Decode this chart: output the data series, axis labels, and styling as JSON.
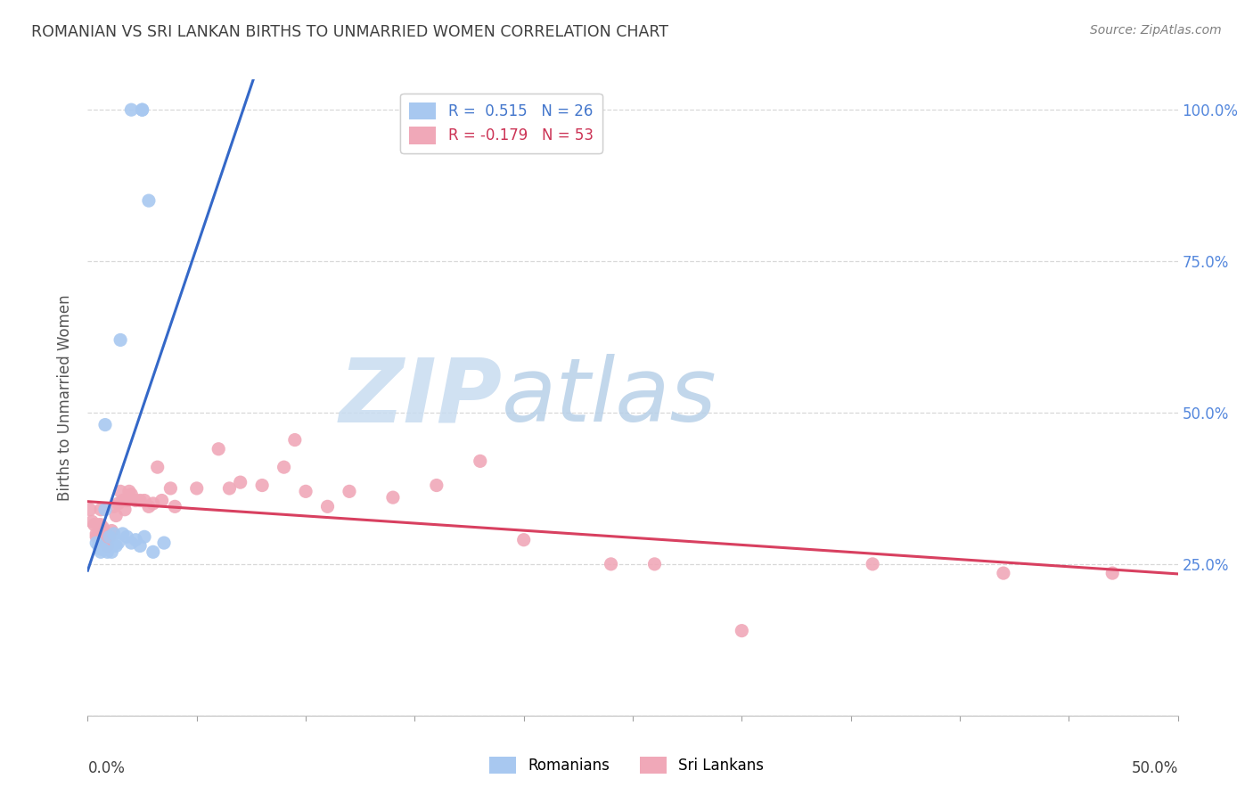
{
  "title": "ROMANIAN VS SRI LANKAN BIRTHS TO UNMARRIED WOMEN CORRELATION CHART",
  "source": "Source: ZipAtlas.com",
  "ylabel": "Births to Unmarried Women",
  "ylabel_right_ticks": [
    "100.0%",
    "75.0%",
    "50.0%",
    "25.0%"
  ],
  "ylabel_right_values": [
    1.0,
    0.75,
    0.5,
    0.25
  ],
  "legend_romanian": "R =  0.515   N = 26",
  "legend_sri_lankan": "R = -0.179   N = 53",
  "legend_label_rom": "Romanians",
  "legend_label_sri": "Sri Lankans",
  "color_romanian": "#a8c8f0",
  "color_sri_lankan": "#f0a8b8",
  "color_line_romanian": "#3468c8",
  "color_line_sri_lankan": "#d84060",
  "watermark_zip": "ZIP",
  "watermark_atlas": "atlas",
  "watermark_color_zip": "#c8dff0",
  "watermark_color_atlas": "#c0d8e8",
  "background_color": "#ffffff",
  "grid_color": "#d8d8d8",
  "title_color": "#404040",
  "romanians_x": [
    0.02,
    0.025,
    0.025,
    0.028,
    0.015,
    0.008,
    0.008,
    0.01,
    0.012,
    0.014,
    0.016,
    0.018,
    0.02,
    0.022,
    0.024,
    0.026,
    0.006,
    0.004,
    0.005,
    0.006,
    0.007,
    0.009,
    0.011,
    0.013,
    0.03,
    0.035
  ],
  "romanians_y": [
    1.0,
    1.0,
    1.0,
    0.85,
    0.62,
    0.48,
    0.34,
    0.295,
    0.3,
    0.285,
    0.3,
    0.295,
    0.285,
    0.29,
    0.28,
    0.295,
    0.27,
    0.285,
    0.28,
    0.275,
    0.275,
    0.27,
    0.27,
    0.28,
    0.27,
    0.285
  ],
  "srilankans_x": [
    0.001,
    0.002,
    0.003,
    0.004,
    0.004,
    0.005,
    0.006,
    0.006,
    0.007,
    0.007,
    0.008,
    0.008,
    0.009,
    0.01,
    0.011,
    0.012,
    0.013,
    0.014,
    0.015,
    0.016,
    0.017,
    0.018,
    0.019,
    0.02,
    0.022,
    0.024,
    0.026,
    0.028,
    0.03,
    0.032,
    0.034,
    0.038,
    0.04,
    0.05,
    0.06,
    0.065,
    0.07,
    0.08,
    0.09,
    0.095,
    0.1,
    0.11,
    0.12,
    0.14,
    0.16,
    0.18,
    0.2,
    0.24,
    0.26,
    0.3,
    0.36,
    0.42,
    0.47
  ],
  "srilankans_y": [
    0.34,
    0.32,
    0.315,
    0.3,
    0.295,
    0.315,
    0.34,
    0.315,
    0.31,
    0.295,
    0.3,
    0.285,
    0.28,
    0.295,
    0.305,
    0.345,
    0.33,
    0.35,
    0.37,
    0.355,
    0.34,
    0.355,
    0.37,
    0.365,
    0.355,
    0.355,
    0.355,
    0.345,
    0.35,
    0.41,
    0.355,
    0.375,
    0.345,
    0.375,
    0.44,
    0.375,
    0.385,
    0.38,
    0.41,
    0.455,
    0.37,
    0.345,
    0.37,
    0.36,
    0.38,
    0.42,
    0.29,
    0.25,
    0.25,
    0.14,
    0.25,
    0.235,
    0.235
  ],
  "xlim": [
    0.0,
    0.5
  ],
  "ylim": [
    0.0,
    1.05
  ],
  "x_ticks": [
    0.0,
    0.05,
    0.1,
    0.15,
    0.2,
    0.25,
    0.3,
    0.35,
    0.4,
    0.45,
    0.5
  ],
  "y_ticks": [
    0.0,
    0.25,
    0.5,
    0.75,
    1.0
  ],
  "marker_size": 120
}
